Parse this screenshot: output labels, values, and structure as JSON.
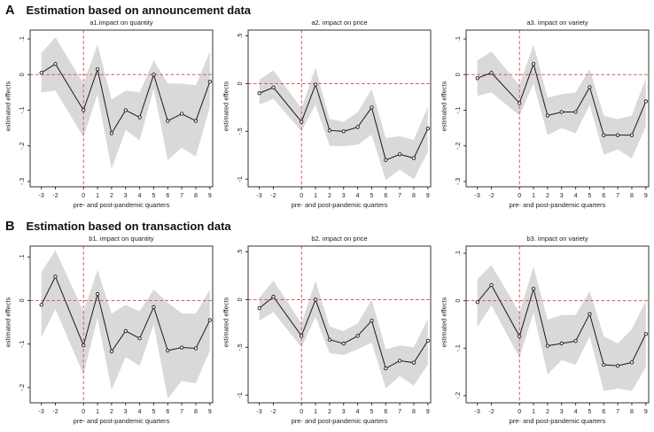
{
  "figure": {
    "sections": [
      {
        "letter": "A",
        "heading": "Estimation based on announcement data"
      },
      {
        "letter": "B",
        "heading": "Estimation based on transaction data"
      }
    ]
  },
  "colors": {
    "band": "#d9d9d9",
    "line": "#1a1a1a",
    "marker_fill": "#ffffff",
    "reference": "#dc5550",
    "axis": "#333333"
  },
  "chart_data": [
    {
      "type": "line",
      "title": "a1.impact on quantity",
      "xlabel": "pre- and post-pandemic quarters",
      "ylabel": "estimated effects",
      "x": [
        -3,
        -2,
        0,
        1,
        2,
        3,
        4,
        5,
        6,
        7,
        8,
        9
      ],
      "xtick_labels": [
        "-3",
        "-2",
        "0",
        "1",
        "2",
        "3",
        "4",
        "5",
        "6",
        "7",
        "8",
        "9"
      ],
      "values": [
        0.005,
        0.03,
        -0.1,
        0.015,
        -0.165,
        -0.1,
        -0.12,
        0.0,
        -0.13,
        -0.11,
        -0.13,
        -0.02
      ],
      "band_upper": [
        0.06,
        0.105,
        -0.025,
        0.085,
        -0.07,
        -0.045,
        -0.05,
        0.04,
        -0.025,
        -0.025,
        -0.03,
        0.065
      ],
      "band_lower": [
        -0.05,
        -0.045,
        -0.175,
        -0.055,
        -0.265,
        -0.155,
        -0.185,
        -0.04,
        -0.24,
        -0.205,
        -0.23,
        -0.09
      ],
      "yticks": [
        0.1,
        0.0,
        -0.1,
        -0.2,
        -0.3
      ],
      "ytick_labels": [
        ".1",
        "0",
        "-.1",
        "-.2",
        "-.3"
      ],
      "ylim": [
        -0.315,
        0.125
      ],
      "xlim": [
        -3.8,
        9.2
      ],
      "ref_x": 0,
      "ref_y": 0,
      "grid": false,
      "legend": "none"
    },
    {
      "type": "line",
      "title": "a2. impact on price",
      "xlabel": "pre- and post-pandemic quarters",
      "ylabel": "estimated effects",
      "x": [
        -3,
        -2,
        0,
        1,
        2,
        3,
        4,
        5,
        6,
        7,
        8,
        9
      ],
      "xtick_labels": [
        "-3",
        "-2",
        "0",
        "1",
        "2",
        "3",
        "4",
        "5",
        "6",
        "7",
        "8",
        "9"
      ],
      "values": [
        -0.1,
        -0.04,
        -0.4,
        -0.01,
        -0.49,
        -0.5,
        -0.455,
        -0.25,
        -0.8,
        -0.74,
        -0.78,
        -0.47
      ],
      "band_upper": [
        0.04,
        0.14,
        -0.26,
        0.17,
        -0.37,
        -0.4,
        -0.3,
        -0.06,
        -0.57,
        -0.55,
        -0.59,
        -0.24
      ],
      "band_lower": [
        -0.22,
        -0.16,
        -0.5,
        -0.22,
        -0.65,
        -0.655,
        -0.64,
        -0.535,
        -1.01,
        -0.9,
        -1.0,
        -0.715
      ],
      "yticks": [
        0.5,
        0.0,
        -0.5,
        -1.0
      ],
      "ytick_labels": [
        ".5",
        "0",
        "-.5",
        "-1"
      ],
      "ylim": [
        -1.08,
        0.56
      ],
      "xlim": [
        -3.8,
        9.2
      ],
      "ref_x": 0,
      "ref_y": 0,
      "grid": false,
      "legend": "none"
    },
    {
      "type": "line",
      "title": "a3. impact on variety",
      "xlabel": "pre- and post-pandemic quarters",
      "ylabel": "estimated effects",
      "x": [
        -3,
        -2,
        0,
        1,
        2,
        3,
        4,
        5,
        6,
        7,
        8,
        9
      ],
      "xtick_labels": [
        "-3",
        "-2",
        "0",
        "1",
        "2",
        "3",
        "4",
        "5",
        "6",
        "7",
        "8",
        "9"
      ],
      "values": [
        -0.01,
        0.005,
        -0.08,
        0.03,
        -0.115,
        -0.105,
        -0.105,
        -0.035,
        -0.17,
        -0.17,
        -0.17,
        -0.075
      ],
      "band_upper": [
        0.04,
        0.065,
        -0.03,
        0.085,
        -0.065,
        -0.055,
        -0.05,
        0.015,
        -0.115,
        -0.125,
        -0.115,
        -0.01
      ],
      "band_lower": [
        -0.06,
        -0.05,
        -0.115,
        -0.025,
        -0.17,
        -0.15,
        -0.165,
        -0.085,
        -0.225,
        -0.21,
        -0.235,
        -0.145
      ],
      "yticks": [
        0.1,
        0.0,
        -0.1,
        -0.2,
        -0.3
      ],
      "ytick_labels": [
        ".1",
        "0",
        "-.1",
        "-.2",
        "-.3"
      ],
      "ylim": [
        -0.315,
        0.125
      ],
      "xlim": [
        -3.8,
        9.2
      ],
      "ref_x": 0,
      "ref_y": 0,
      "grid": false,
      "legend": "none"
    },
    {
      "type": "line",
      "title": "b1. impact on quantity",
      "xlabel": "pre- and post-pandemic quarters",
      "ylabel": "estimated effects",
      "x": [
        -3,
        -2,
        0,
        1,
        2,
        3,
        4,
        5,
        6,
        7,
        8,
        9
      ],
      "xtick_labels": [
        "-3",
        "-2",
        "0",
        "1",
        "2",
        "3",
        "4",
        "5",
        "6",
        "7",
        "8",
        "9"
      ],
      "values": [
        -0.01,
        0.055,
        -0.103,
        0.015,
        -0.117,
        -0.07,
        -0.087,
        -0.015,
        -0.115,
        -0.108,
        -0.11,
        -0.045
      ],
      "band_upper": [
        0.065,
        0.115,
        -0.025,
        0.07,
        -0.03,
        -0.01,
        -0.025,
        0.025,
        -0.005,
        -0.03,
        -0.03,
        0.025
      ],
      "band_lower": [
        -0.085,
        -0.02,
        -0.17,
        -0.04,
        -0.205,
        -0.13,
        -0.15,
        -0.055,
        -0.225,
        -0.185,
        -0.19,
        -0.115
      ],
      "yticks": [
        0.1,
        0.0,
        -0.1,
        -0.2
      ],
      "ytick_labels": [
        ".1",
        "0",
        "-.1",
        "-.2"
      ],
      "ylim": [
        -0.235,
        0.125
      ],
      "xlim": [
        -3.8,
        9.2
      ],
      "ref_x": 0,
      "ref_y": 0,
      "grid": false,
      "legend": "none"
    },
    {
      "type": "line",
      "title": "b2. impact on price",
      "xlabel": "pre- and post-pandemic quarters",
      "ylabel": "estimated effects",
      "x": [
        -3,
        -2,
        0,
        1,
        2,
        3,
        4,
        5,
        6,
        7,
        8,
        9
      ],
      "xtick_labels": [
        "-3",
        "-2",
        "0",
        "1",
        "2",
        "3",
        "4",
        "5",
        "6",
        "7",
        "8",
        "9"
      ],
      "values": [
        -0.09,
        0.03,
        -0.38,
        0.0,
        -0.42,
        -0.46,
        -0.38,
        -0.22,
        -0.72,
        -0.64,
        -0.66,
        -0.43
      ],
      "band_upper": [
        0.02,
        0.2,
        -0.25,
        0.2,
        -0.28,
        -0.33,
        -0.25,
        0.0,
        -0.52,
        -0.48,
        -0.5,
        -0.2
      ],
      "band_lower": [
        -0.22,
        -0.13,
        -0.5,
        -0.18,
        -0.56,
        -0.58,
        -0.52,
        -0.45,
        -0.93,
        -0.8,
        -0.9,
        -0.68
      ],
      "yticks": [
        0.5,
        0.0,
        -0.5,
        -1.0
      ],
      "ytick_labels": [
        ".5",
        "0",
        "-.5",
        "-1"
      ],
      "ylim": [
        -1.08,
        0.56
      ],
      "xlim": [
        -3.8,
        9.2
      ],
      "ref_x": 0,
      "ref_y": 0,
      "grid": false,
      "legend": "none"
    },
    {
      "type": "line",
      "title": "b3. impact on variety",
      "xlabel": "pre- and post-pandemic quarters",
      "ylabel": "estimated effects",
      "x": [
        -3,
        -2,
        0,
        1,
        2,
        3,
        4,
        5,
        6,
        7,
        8,
        9
      ],
      "xtick_labels": [
        "-3",
        "-2",
        "0",
        "1",
        "2",
        "3",
        "4",
        "5",
        "6",
        "7",
        "8",
        "9"
      ],
      "values": [
        -0.003,
        0.033,
        -0.075,
        0.025,
        -0.095,
        -0.09,
        -0.085,
        -0.028,
        -0.135,
        -0.137,
        -0.13,
        -0.07
      ],
      "band_upper": [
        0.045,
        0.075,
        -0.025,
        0.072,
        -0.04,
        -0.03,
        -0.03,
        0.02,
        -0.075,
        -0.09,
        -0.06,
        0.0
      ],
      "band_lower": [
        -0.055,
        -0.01,
        -0.12,
        -0.025,
        -0.155,
        -0.125,
        -0.135,
        -0.075,
        -0.19,
        -0.185,
        -0.19,
        -0.14
      ],
      "yticks": [
        0.1,
        0.0,
        -0.1,
        -0.2
      ],
      "ytick_labels": [
        ".1",
        "0",
        "-.1",
        "-.2"
      ],
      "ylim": [
        -0.215,
        0.115
      ],
      "xlim": [
        -3.8,
        9.2
      ],
      "ref_x": 0,
      "ref_y": 0,
      "grid": false,
      "legend": "none"
    }
  ]
}
